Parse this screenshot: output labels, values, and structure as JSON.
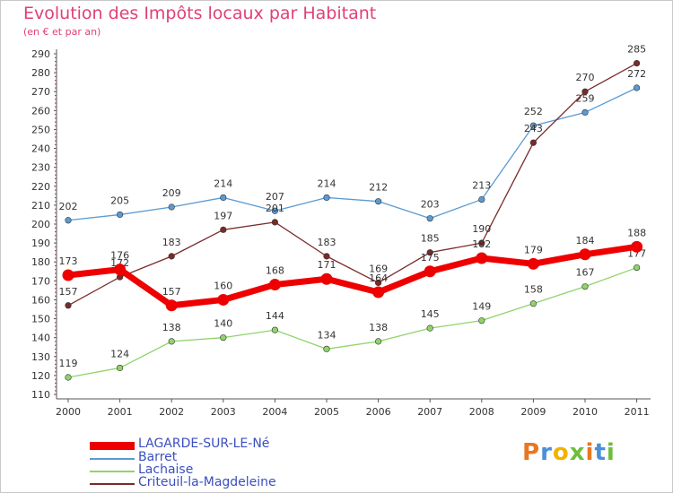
{
  "chart_data": {
    "type": "line",
    "title": "Evolution des Impôts locaux par Habitant",
    "subtitle": "(en € et par an)",
    "xlabel": "",
    "ylabel": "",
    "categories": [
      "2000",
      "2001",
      "2002",
      "2003",
      "2004",
      "2005",
      "2006",
      "2007",
      "2008",
      "2009",
      "2010",
      "2011"
    ],
    "ylim": [
      110,
      290
    ],
    "yticks": [
      110,
      120,
      130,
      140,
      150,
      160,
      170,
      180,
      190,
      200,
      210,
      220,
      230,
      240,
      250,
      260,
      270,
      280,
      290
    ],
    "grid": false,
    "legend_position": "bottom-left",
    "series": [
      {
        "name": "LAGARDE-SUR-LE-Né",
        "color": "#ee0000",
        "values": [
          173,
          176,
          157,
          160,
          168,
          171,
          164,
          175,
          182,
          179,
          184,
          188
        ]
      },
      {
        "name": "Barret",
        "color": "#5a9bd4",
        "values": [
          202,
          205,
          209,
          214,
          207,
          214,
          212,
          203,
          213,
          252,
          259,
          272
        ]
      },
      {
        "name": "Lachaise",
        "color": "#8ed46a",
        "values": [
          119,
          124,
          138,
          140,
          144,
          134,
          138,
          145,
          149,
          158,
          167,
          177
        ]
      },
      {
        "name": "Criteuil-la-Magdeleine",
        "color": "#7a2a2a",
        "values": [
          157,
          172,
          183,
          197,
          201,
          183,
          169,
          185,
          190,
          243,
          270,
          285
        ]
      }
    ]
  },
  "logo": {
    "text": "Proxiti"
  }
}
